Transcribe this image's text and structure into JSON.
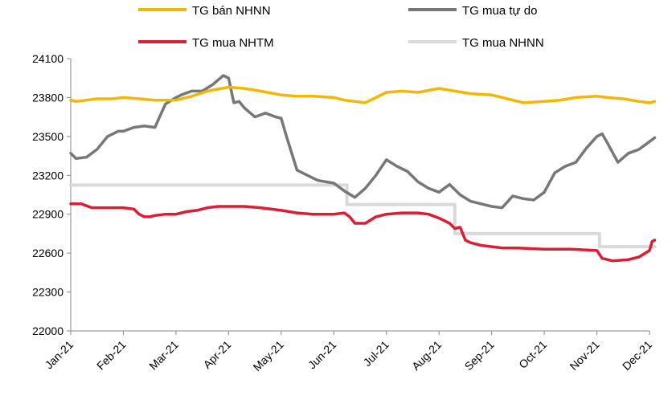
{
  "chart_data": {
    "type": "line",
    "title": "",
    "xlabel": "",
    "ylabel": "",
    "ylim": [
      22000,
      24100
    ],
    "yticks": [
      22000,
      22300,
      22600,
      22900,
      23200,
      23500,
      23800,
      24100
    ],
    "categories": [
      "Jan-21",
      "Feb-21",
      "Mar-21",
      "Apr-21",
      "May-21",
      "Jun-21",
      "Jul-21",
      "Aug-21",
      "Sep-21",
      "Oct-21",
      "Nov-21",
      "Dec-21"
    ],
    "grid": false,
    "legend_position": "top",
    "series": [
      {
        "name": "TG bán NHNN",
        "color": "#F2B705",
        "x": [
          0,
          0.1,
          0.3,
          0.5,
          0.8,
          1,
          1.3,
          1.6,
          2,
          2.3,
          2.6,
          3,
          3.3,
          3.6,
          4,
          4.3,
          4.6,
          5,
          5.2,
          5.4,
          5.6,
          6,
          6.3,
          6.6,
          7,
          7.3,
          7.6,
          8,
          8.3,
          8.6,
          9,
          9.3,
          9.6,
          10,
          10.2,
          10.5,
          10.8,
          11,
          11.1
        ],
        "values": [
          23780,
          23770,
          23780,
          23790,
          23790,
          23800,
          23790,
          23780,
          23780,
          23810,
          23850,
          23880,
          23870,
          23850,
          23820,
          23810,
          23810,
          23800,
          23780,
          23770,
          23760,
          23840,
          23850,
          23840,
          23870,
          23850,
          23830,
          23820,
          23790,
          23760,
          23770,
          23780,
          23800,
          23810,
          23800,
          23790,
          23770,
          23760,
          23770
        ]
      },
      {
        "name": "TG mua tự do",
        "color": "#777777",
        "x": [
          0,
          0.1,
          0.3,
          0.5,
          0.7,
          0.9,
          1,
          1.2,
          1.4,
          1.6,
          1.8,
          2,
          2.1,
          2.3,
          2.5,
          2.7,
          2.9,
          3,
          3.1,
          3.2,
          3.3,
          3.5,
          3.7,
          3.9,
          4,
          4.1,
          4.3,
          4.5,
          4.7,
          5,
          5.2,
          5.4,
          5.6,
          5.8,
          6,
          6.2,
          6.4,
          6.6,
          6.8,
          7,
          7.2,
          7.4,
          7.6,
          7.8,
          8,
          8.2,
          8.4,
          8.6,
          8.8,
          9,
          9.2,
          9.4,
          9.6,
          9.8,
          10,
          10.1,
          10.2,
          10.4,
          10.6,
          10.8,
          11,
          11.1
        ],
        "values": [
          23370,
          23330,
          23340,
          23400,
          23500,
          23540,
          23540,
          23570,
          23580,
          23570,
          23750,
          23800,
          23820,
          23850,
          23850,
          23900,
          23970,
          23950,
          23760,
          23770,
          23720,
          23650,
          23680,
          23650,
          23640,
          23500,
          23240,
          23200,
          23160,
          23140,
          23080,
          23030,
          23100,
          23200,
          23320,
          23270,
          23230,
          23150,
          23100,
          23070,
          23130,
          23050,
          23000,
          22980,
          22960,
          22950,
          23040,
          23020,
          23010,
          23070,
          23220,
          23270,
          23300,
          23410,
          23500,
          23520,
          23450,
          23300,
          23370,
          23400,
          23460,
          23490
        ]
      },
      {
        "name": "TG mua NHTM",
        "color": "#D91E36",
        "x": [
          0,
          0.2,
          0.4,
          0.6,
          0.8,
          1,
          1.2,
          1.3,
          1.4,
          1.5,
          1.6,
          1.8,
          2,
          2.2,
          2.4,
          2.6,
          2.8,
          3,
          3.3,
          3.6,
          4,
          4.3,
          4.6,
          5,
          5.2,
          5.3,
          5.4,
          5.6,
          5.8,
          6,
          6.3,
          6.6,
          6.8,
          7,
          7.2,
          7.3,
          7.4,
          7.5,
          7.6,
          7.8,
          8,
          8.2,
          8.5,
          9,
          9.5,
          10,
          10.1,
          10.3,
          10.6,
          10.8,
          11,
          11.05,
          11.1
        ],
        "values": [
          22980,
          22980,
          22950,
          22950,
          22950,
          22950,
          22940,
          22900,
          22880,
          22880,
          22890,
          22900,
          22900,
          22920,
          22930,
          22950,
          22960,
          22960,
          22960,
          22950,
          22930,
          22910,
          22900,
          22900,
          22910,
          22880,
          22830,
          22830,
          22880,
          22900,
          22910,
          22910,
          22900,
          22870,
          22830,
          22790,
          22800,
          22700,
          22680,
          22660,
          22650,
          22640,
          22640,
          22630,
          22630,
          22620,
          22560,
          22540,
          22550,
          22570,
          22620,
          22690,
          22700
        ]
      },
      {
        "name": "TG mua NHNN",
        "color": "#D9D9D9",
        "x": [
          0,
          5.25,
          5.25,
          7.3,
          7.3,
          10.05,
          10.05,
          11.1
        ],
        "values": [
          23125,
          23125,
          22975,
          22975,
          22750,
          22750,
          22650,
          22650
        ],
        "step": true
      }
    ]
  }
}
